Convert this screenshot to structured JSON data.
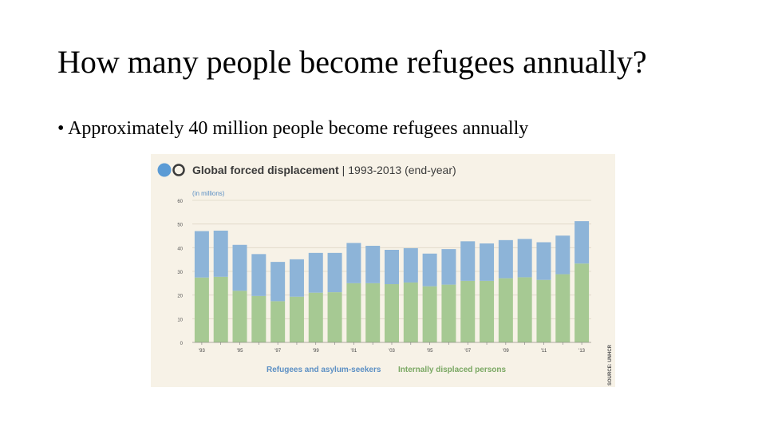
{
  "slide": {
    "title": "How many people become refugees annually?",
    "bullet_marker": "•",
    "bullet": "Approximately 40 million people become refugees annually"
  },
  "colors": {
    "refugees": "#8db4d8",
    "idp": "#a6c993",
    "panel_bg": "#f7f2e7",
    "grid": "#ddd6c6",
    "title_text": "#3b3b3b",
    "refugee_label": "#5b8fc4",
    "idp_label": "#7aa863",
    "icon_blue": "#5b9bd5"
  },
  "chart_data": {
    "type": "bar",
    "stacked": true,
    "title_main": "Global forced displacement",
    "title_separator": "|",
    "title_range": "1993-2013 (end-year)",
    "ylabel": "(in millions)",
    "ylim": [
      0,
      60
    ],
    "yticks": [
      0,
      10,
      20,
      30,
      40,
      50,
      60
    ],
    "grid": true,
    "years": [
      1993,
      1994,
      1995,
      1996,
      1997,
      1998,
      1999,
      2000,
      2001,
      2002,
      2003,
      2004,
      2005,
      2006,
      2007,
      2008,
      2009,
      2010,
      2011,
      2012,
      2013
    ],
    "xtick_labels": [
      "'93",
      "",
      "'95",
      "",
      "'97",
      "",
      "'99",
      "",
      "'01",
      "",
      "'03",
      "",
      "'05",
      "",
      "'07",
      "",
      "'09",
      "",
      "'11",
      "",
      "'13"
    ],
    "series": [
      {
        "name": "Internally displaced persons",
        "values": [
          27.4,
          27.7,
          21.8,
          19.6,
          17.4,
          19.3,
          21.0,
          21.2,
          25.0,
          25.0,
          24.6,
          25.3,
          23.7,
          24.4,
          26.0,
          26.0,
          27.1,
          27.5,
          26.4,
          28.8,
          33.3
        ]
      },
      {
        "name": "Refugees and asylum-seekers",
        "values": [
          19.6,
          19.5,
          19.4,
          17.7,
          16.6,
          15.8,
          16.8,
          16.6,
          17.0,
          15.8,
          14.5,
          14.5,
          13.8,
          15.0,
          16.7,
          15.8,
          16.1,
          16.2,
          15.9,
          16.3,
          17.9
        ]
      }
    ],
    "legend": [
      "Refugees and asylum-seekers",
      "Internally displaced persons"
    ],
    "source": "SOURCE: UNHCR"
  }
}
